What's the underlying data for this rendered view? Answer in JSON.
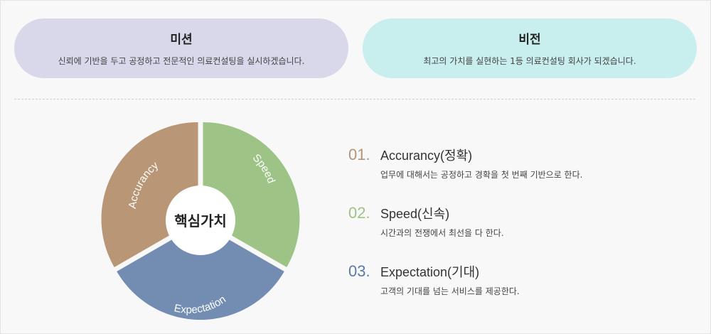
{
  "mission": {
    "title": "미션",
    "description": "신뢰에 기반을 두고 공정하고 전문적인 의료컨설팅을 실시하겠습니다."
  },
  "vision": {
    "title": "비전",
    "description": "최고의 가치를 실현하는 1등 의료컨설팅 회사가 되겠습니다."
  },
  "diagram": {
    "center_label": "핵심가치",
    "segments": [
      {
        "label": "Speed",
        "color": "#9dc486"
      },
      {
        "label": "Expectation",
        "color": "#738cb2"
      },
      {
        "label": "Accurancy",
        "color": "#b89676"
      }
    ]
  },
  "values": [
    {
      "number": "01.",
      "title": "Accurancy(정확)",
      "description": "업무에 대해서는 공정하고 경확을 첫 번째 기반으로 한다.",
      "color": "#b39478"
    },
    {
      "number": "02.",
      "title": "Speed(신속)",
      "description": "시간과의 전쟁에서 최선을 다 한다.",
      "color": "#9dc486"
    },
    {
      "number": "03.",
      "title": "Expectation(기대)",
      "description": "고객의 기대를 넘는 서비스를 제공한다.",
      "color": "#5b79a8"
    }
  ]
}
